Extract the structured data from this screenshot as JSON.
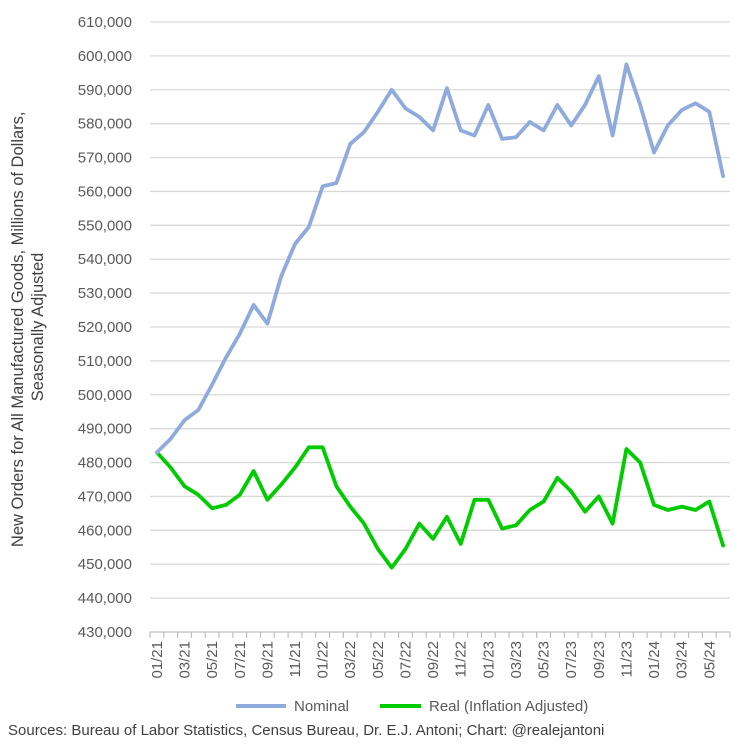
{
  "chart_data": {
    "type": "line",
    "ylabel_lines": [
      "New Orders for All Manufactured Goods, Millions of Dollars,",
      "Seasonally Adjusted"
    ],
    "ylim": [
      430000,
      610000
    ],
    "ytick_step": 10000,
    "grid": true,
    "legend_position": "bottom",
    "x": [
      "01/21",
      "02/21",
      "03/21",
      "04/21",
      "05/21",
      "06/21",
      "07/21",
      "08/21",
      "09/21",
      "10/21",
      "11/21",
      "12/21",
      "01/22",
      "02/22",
      "03/22",
      "04/22",
      "05/22",
      "06/22",
      "07/22",
      "08/22",
      "09/22",
      "10/22",
      "11/22",
      "12/22",
      "01/23",
      "02/23",
      "03/23",
      "04/23",
      "05/23",
      "06/23",
      "07/23",
      "08/23",
      "09/23",
      "10/23",
      "11/23",
      "12/23",
      "01/24",
      "02/24",
      "03/24",
      "04/24",
      "05/24",
      "06/24"
    ],
    "xtick_labels": [
      "01/21",
      "03/21",
      "05/21",
      "07/21",
      "09/21",
      "11/21",
      "01/22",
      "03/22",
      "05/22",
      "07/22",
      "09/22",
      "11/22",
      "01/23",
      "03/23",
      "05/23",
      "07/23",
      "09/23",
      "11/23",
      "01/24",
      "03/24",
      "05/24"
    ],
    "series": [
      {
        "name": "Nominal",
        "color": "#8FAADC",
        "values": [
          483000,
          487000,
          492500,
          495500,
          503000,
          511000,
          518000,
          526500,
          521000,
          535000,
          544500,
          549500,
          561500,
          562500,
          574000,
          577500,
          583500,
          590000,
          584500,
          582000,
          578000,
          590500,
          578000,
          576500,
          585500,
          575500,
          576000,
          580500,
          578000,
          585500,
          579500,
          585500,
          594000,
          576500,
          597500,
          585500,
          571500,
          579500,
          584000,
          586000,
          583500,
          564500
        ]
      },
      {
        "name": "Real (Inflation Adjusted)",
        "color": "#00CC00",
        "values": [
          483000,
          478500,
          473000,
          470500,
          466500,
          467500,
          470500,
          477500,
          469000,
          473500,
          478500,
          484500,
          484500,
          473000,
          467000,
          462000,
          454500,
          449000,
          454500,
          462000,
          457500,
          464000,
          456000,
          469000,
          469000,
          460500,
          461500,
          466000,
          468500,
          475500,
          471500,
          465500,
          470000,
          462000,
          484000,
          480000,
          467500,
          466000,
          467000,
          466000,
          468500,
          455500
        ]
      }
    ]
  },
  "source_text": "Sources: Bureau of Labor Statistics, Census Bureau, Dr. E.J. Antoni; Chart: @realejantoni"
}
